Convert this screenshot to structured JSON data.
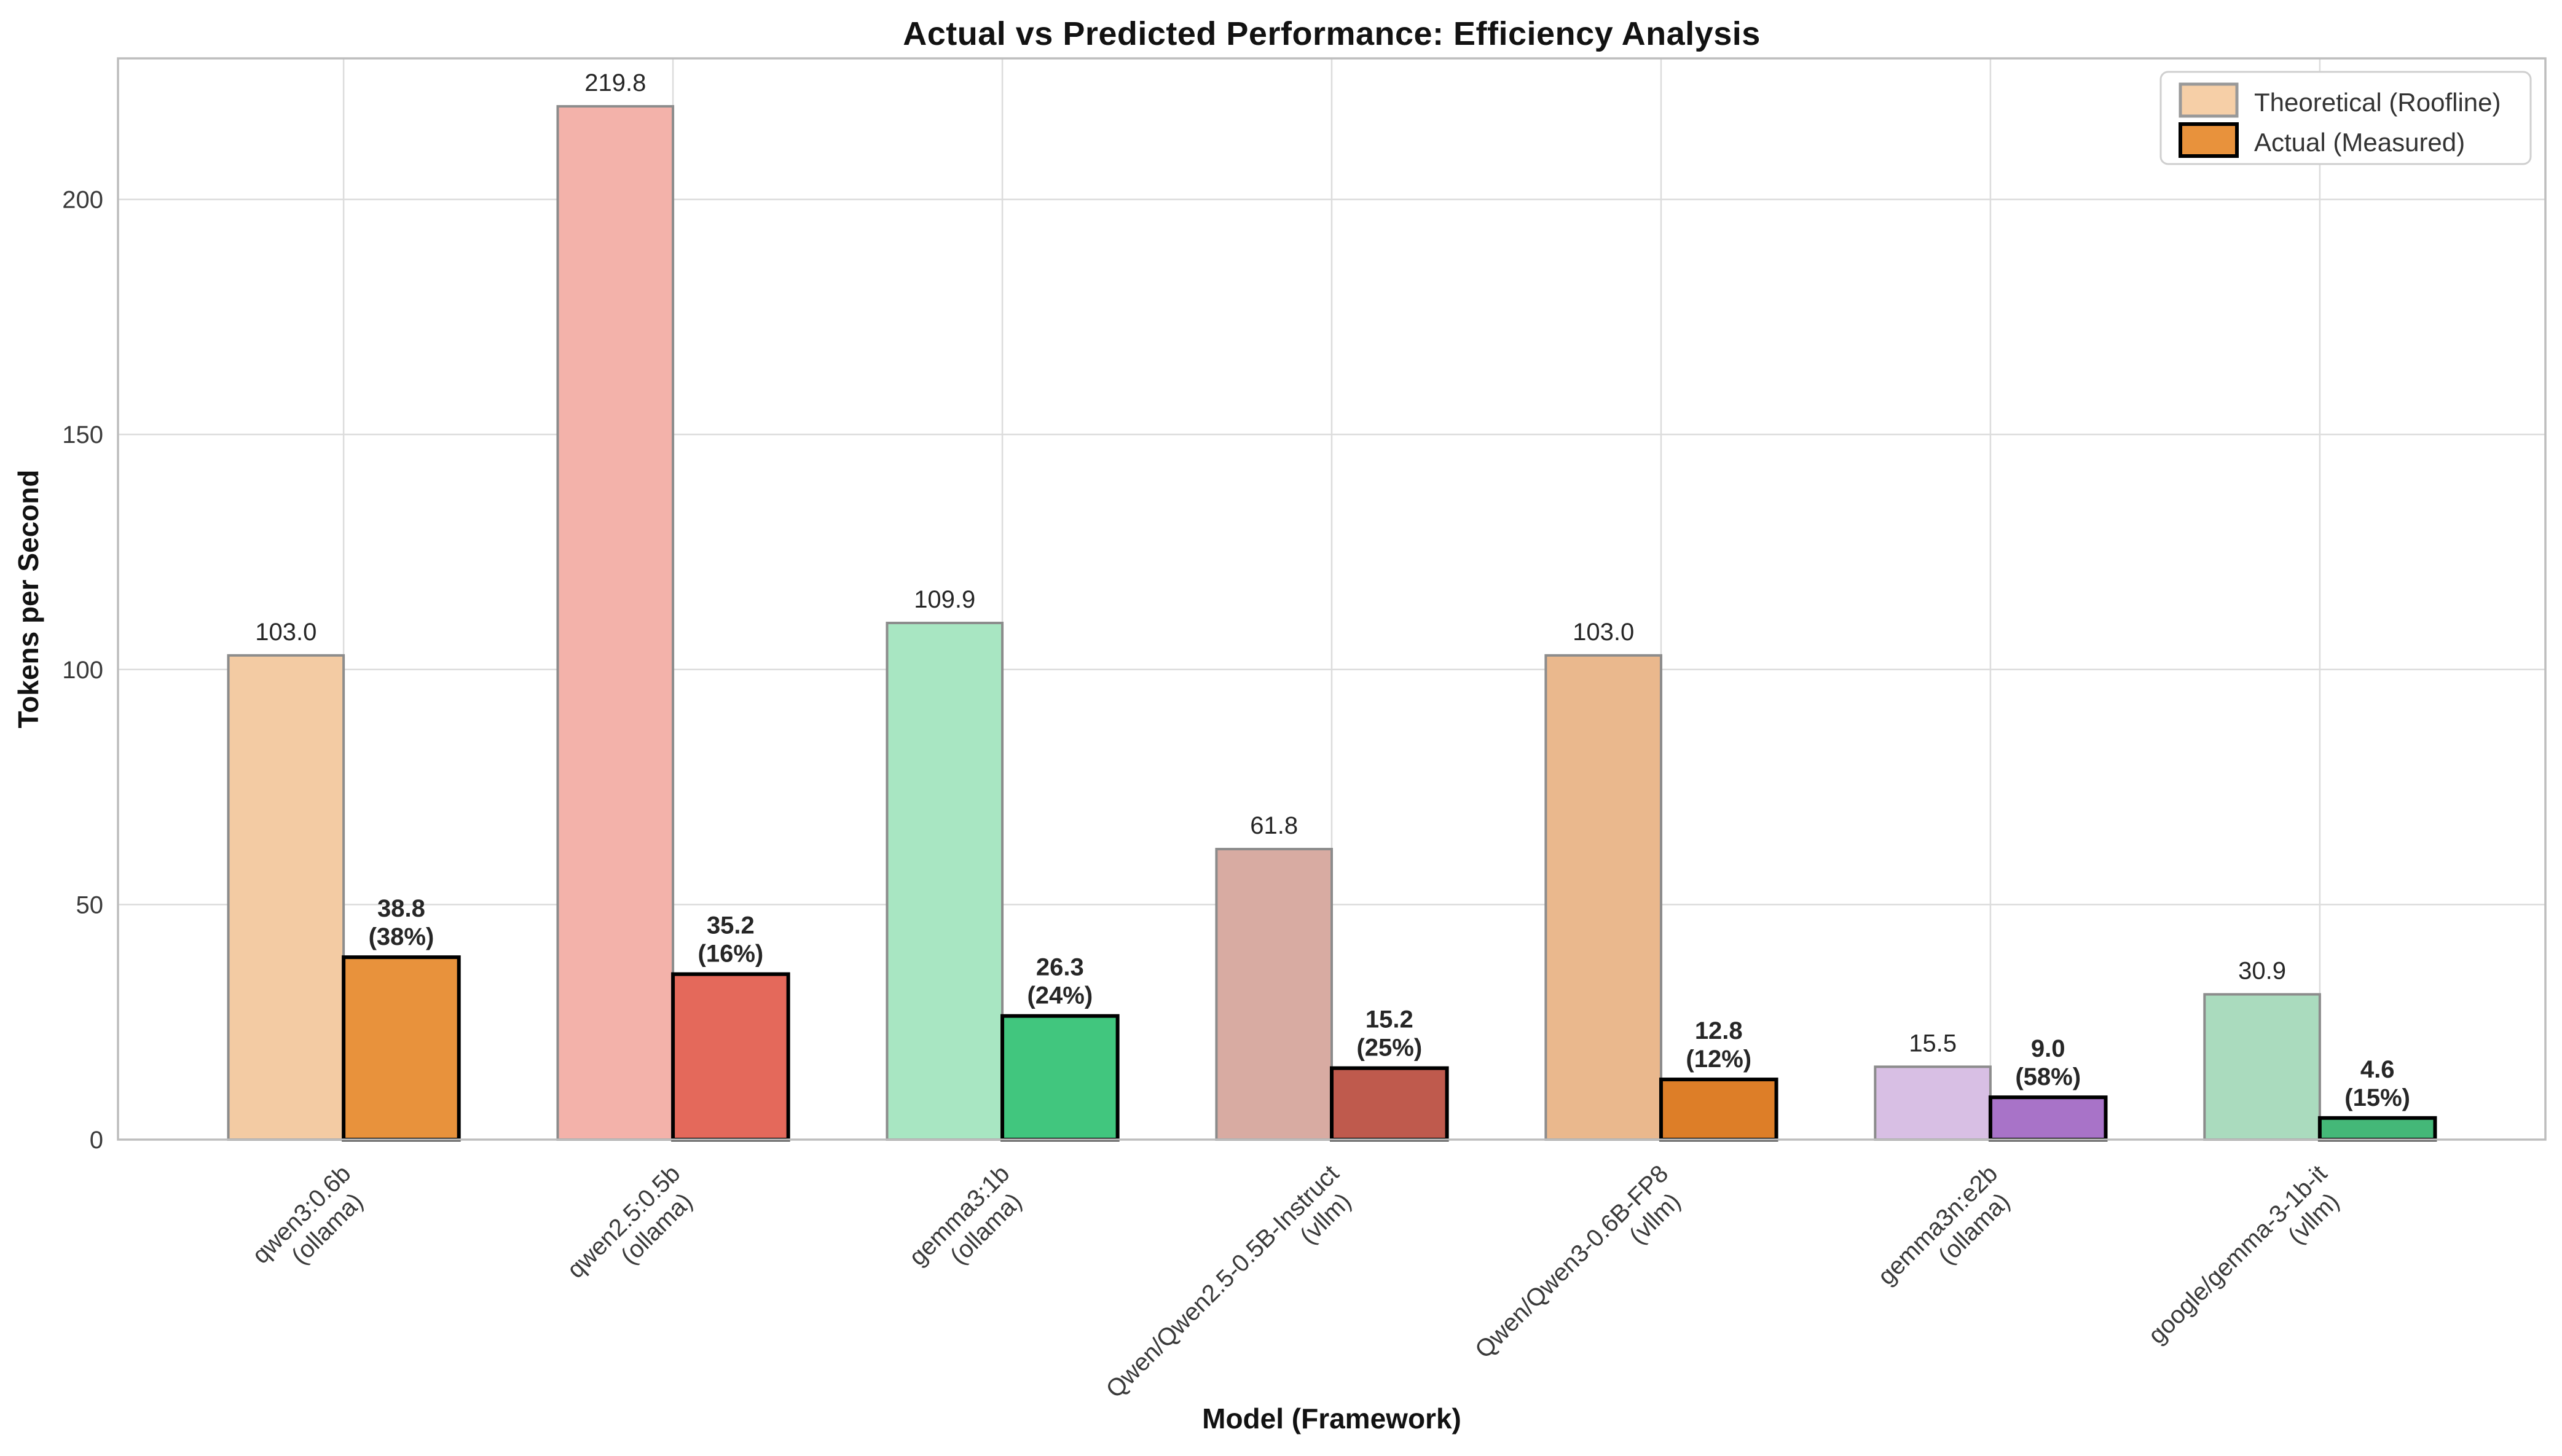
{
  "chart_data": {
    "type": "bar",
    "title": "Actual vs Predicted Performance: Efficiency Analysis",
    "xlabel": "Model (Framework)",
    "ylabel": "Tokens per Second",
    "ylim": [
      0,
      230
    ],
    "yticks": [
      0,
      50,
      100,
      150,
      200
    ],
    "grid": true,
    "legend_position": "upper right",
    "categories": [
      "qwen3:0.6b",
      "qwen2.5:0.5b",
      "gemma3:1b",
      "Qwen/Qwen2.5-0.5B-Instruct",
      "Qwen/Qwen3-0.6B-FP8",
      "gemma3n:e2b",
      "google/gemma-3-1b-it"
    ],
    "frameworks": [
      "(ollama)",
      "(ollama)",
      "(ollama)",
      "(vllm)",
      "(vllm)",
      "(ollama)",
      "(vllm)"
    ],
    "series": [
      {
        "name": "Theoretical (Roofline)",
        "values": [
          103.0,
          219.8,
          109.9,
          61.8,
          103.0,
          15.5,
          30.9
        ],
        "bar_colors": [
          "#F3CBA3",
          "#F3B2AA",
          "#A8E6C2",
          "#D8ABA2",
          "#EAB88D",
          "#D8BFE4",
          "#AADBBE"
        ],
        "edge_color": "#8C8C8C",
        "legend_swatch_color": "#F6CFA7"
      },
      {
        "name": "Actual (Measured)",
        "values": [
          38.8,
          35.2,
          26.3,
          15.2,
          12.8,
          9.0,
          4.6
        ],
        "efficiency_pct": [
          "38%",
          "16%",
          "24%",
          "25%",
          "12%",
          "58%",
          "15%"
        ],
        "bar_colors": [
          "#E8923C",
          "#E4695B",
          "#41C67E",
          "#BF5A4D",
          "#DD7E28",
          "#A873C8",
          "#44B878"
        ],
        "edge_color": "#000000",
        "legend_swatch_color": "#E8923C"
      }
    ],
    "colors": {
      "grid": "#DCDCDC",
      "frame": "#BDBDBD",
      "tick_text": "#3A3A3A",
      "label_text": "#262626",
      "legend_border": "#CFCFCF"
    }
  }
}
